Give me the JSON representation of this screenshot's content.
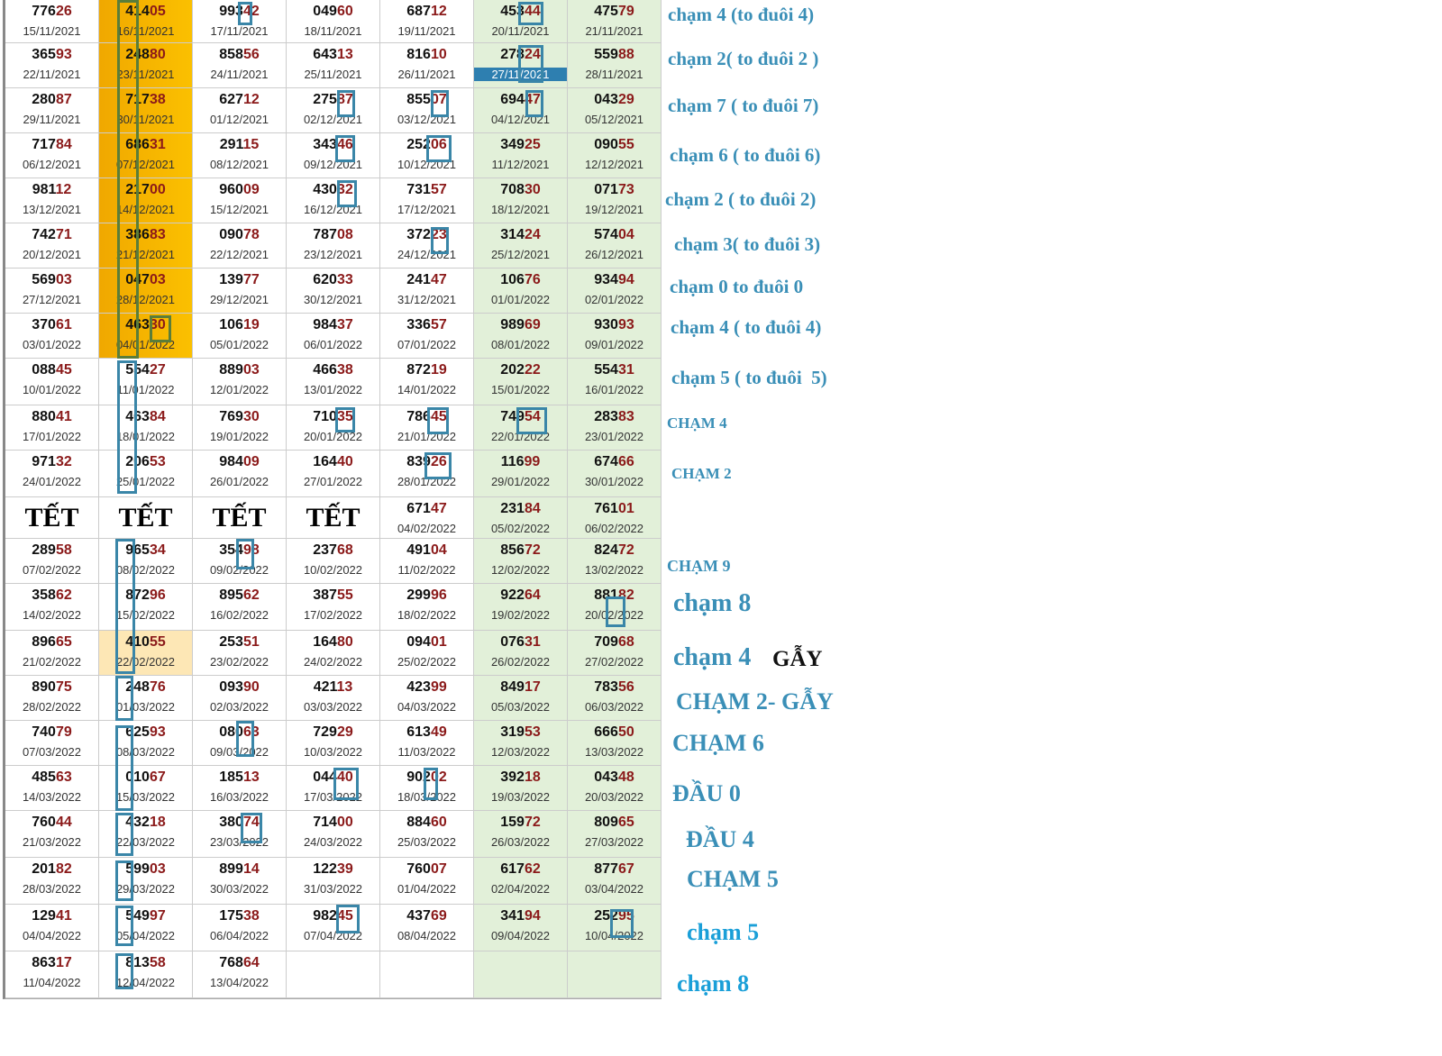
{
  "colors": {
    "tail": "#8b1a1a",
    "annotation": "#3a8fb7",
    "orange": "#f5b400",
    "green": "#e2f0d9",
    "box": "#3a86a8"
  },
  "rows": [
    [
      [
        "77626",
        "15/11/2021"
      ],
      [
        "41405",
        "16/11/2021"
      ],
      [
        "99342",
        "17/11/2021"
      ],
      [
        "04960",
        "18/11/2021"
      ],
      [
        "68712",
        "19/11/2021"
      ],
      [
        "45344",
        "20/11/2021"
      ],
      [
        "47579",
        "21/11/2021"
      ]
    ],
    [
      [
        "36593",
        "22/11/2021"
      ],
      [
        "24880",
        "23/11/2021"
      ],
      [
        "85856",
        "24/11/2021"
      ],
      [
        "64313",
        "25/11/2021"
      ],
      [
        "81610",
        "26/11/2021"
      ],
      [
        "27824",
        "27/11/2021"
      ],
      [
        "55988",
        "28/11/2021"
      ]
    ],
    [
      [
        "28087",
        "29/11/2021"
      ],
      [
        "71738",
        "30/11/2021"
      ],
      [
        "62712",
        "01/12/2021"
      ],
      [
        "27587",
        "02/12/2021"
      ],
      [
        "85507",
        "03/12/2021"
      ],
      [
        "69447",
        "04/12/2021"
      ],
      [
        "04329",
        "05/12/2021"
      ]
    ],
    [
      [
        "71784",
        "06/12/2021"
      ],
      [
        "68631",
        "07/12/2021"
      ],
      [
        "29115",
        "08/12/2021"
      ],
      [
        "34346",
        "09/12/2021"
      ],
      [
        "25206",
        "10/12/2021"
      ],
      [
        "34925",
        "11/12/2021"
      ],
      [
        "09055",
        "12/12/2021"
      ]
    ],
    [
      [
        "98112",
        "13/12/2021"
      ],
      [
        "21700",
        "14/12/2021"
      ],
      [
        "96009",
        "15/12/2021"
      ],
      [
        "43032",
        "16/12/2021"
      ],
      [
        "73157",
        "17/12/2021"
      ],
      [
        "70830",
        "18/12/2021"
      ],
      [
        "07173",
        "19/12/2021"
      ]
    ],
    [
      [
        "74271",
        "20/12/2021"
      ],
      [
        "38683",
        "21/12/2021"
      ],
      [
        "09078",
        "22/12/2021"
      ],
      [
        "78708",
        "23/12/2021"
      ],
      [
        "37223",
        "24/12/2021"
      ],
      [
        "31424",
        "25/12/2021"
      ],
      [
        "57404",
        "26/12/2021"
      ]
    ],
    [
      [
        "56903",
        "27/12/2021"
      ],
      [
        "04703",
        "28/12/2021"
      ],
      [
        "13977",
        "29/12/2021"
      ],
      [
        "62033",
        "30/12/2021"
      ],
      [
        "24147",
        "31/12/2021"
      ],
      [
        "10676",
        "01/01/2022"
      ],
      [
        "93494",
        "02/01/2022"
      ]
    ],
    [
      [
        "37061",
        "03/01/2022"
      ],
      [
        "46330",
        "04/01/2022"
      ],
      [
        "10619",
        "05/01/2022"
      ],
      [
        "98437",
        "06/01/2022"
      ],
      [
        "33657",
        "07/01/2022"
      ],
      [
        "98969",
        "08/01/2022"
      ],
      [
        "93093",
        "09/01/2022"
      ]
    ],
    [
      [
        "08845",
        "10/01/2022"
      ],
      [
        "55427",
        "11/01/2022"
      ],
      [
        "88903",
        "12/01/2022"
      ],
      [
        "46638",
        "13/01/2022"
      ],
      [
        "87219",
        "14/01/2022"
      ],
      [
        "20222",
        "15/01/2022"
      ],
      [
        "55431",
        "16/01/2022"
      ]
    ],
    [
      [
        "88041",
        "17/01/2022"
      ],
      [
        "46384",
        "18/01/2022"
      ],
      [
        "76930",
        "19/01/2022"
      ],
      [
        "71035",
        "20/01/2022"
      ],
      [
        "78645",
        "21/01/2022"
      ],
      [
        "74954",
        "22/01/2022"
      ],
      [
        "28383",
        "23/01/2022"
      ]
    ],
    [
      [
        "97132",
        "24/01/2022"
      ],
      [
        "20653",
        "25/01/2022"
      ],
      [
        "98409",
        "26/01/2022"
      ],
      [
        "16440",
        "27/01/2022"
      ],
      [
        "83926",
        "28/01/2022"
      ],
      [
        "11699",
        "29/01/2022"
      ],
      [
        "67466",
        "30/01/2022"
      ]
    ],
    [
      [
        "TẾT",
        ""
      ],
      [
        "TẾT",
        ""
      ],
      [
        "TẾT",
        ""
      ],
      [
        "TẾT",
        ""
      ],
      [
        "67147",
        "04/02/2022"
      ],
      [
        "23184",
        "05/02/2022"
      ],
      [
        "76101",
        "06/02/2022"
      ]
    ],
    [
      [
        "28958",
        "07/02/2022"
      ],
      [
        "96534",
        "08/02/2022"
      ],
      [
        "35498",
        "09/02/2022"
      ],
      [
        "23768",
        "10/02/2022"
      ],
      [
        "49104",
        "11/02/2022"
      ],
      [
        "85672",
        "12/02/2022"
      ],
      [
        "82472",
        "13/02/2022"
      ]
    ],
    [
      [
        "35862",
        "14/02/2022"
      ],
      [
        "87296",
        "15/02/2022"
      ],
      [
        "89562",
        "16/02/2022"
      ],
      [
        "38755",
        "17/02/2022"
      ],
      [
        "29996",
        "18/02/2022"
      ],
      [
        "92264",
        "19/02/2022"
      ],
      [
        "88182",
        "20/02/2022"
      ]
    ],
    [
      [
        "89665",
        "21/02/2022"
      ],
      [
        "41055",
        "22/02/2022"
      ],
      [
        "25351",
        "23/02/2022"
      ],
      [
        "16480",
        "24/02/2022"
      ],
      [
        "09401",
        "25/02/2022"
      ],
      [
        "07631",
        "26/02/2022"
      ],
      [
        "70968",
        "27/02/2022"
      ]
    ],
    [
      [
        "89075",
        "28/02/2022"
      ],
      [
        "24876",
        "01/03/2022"
      ],
      [
        "09390",
        "02/03/2022"
      ],
      [
        "42113",
        "03/03/2022"
      ],
      [
        "42399",
        "04/03/2022"
      ],
      [
        "84917",
        "05/03/2022"
      ],
      [
        "78356",
        "06/03/2022"
      ]
    ],
    [
      [
        "74079",
        "07/03/2022"
      ],
      [
        "62593",
        "08/03/2022"
      ],
      [
        "08063",
        "09/03/2022"
      ],
      [
        "72929",
        "10/03/2022"
      ],
      [
        "61349",
        "11/03/2022"
      ],
      [
        "31953",
        "12/03/2022"
      ],
      [
        "66650",
        "13/03/2022"
      ]
    ],
    [
      [
        "48563",
        "14/03/2022"
      ],
      [
        "01067",
        "15/03/2022"
      ],
      [
        "18513",
        "16/03/2022"
      ],
      [
        "04440",
        "17/03/2022"
      ],
      [
        "90202",
        "18/03/2022"
      ],
      [
        "39218",
        "19/03/2022"
      ],
      [
        "04348",
        "20/03/2022"
      ]
    ],
    [
      [
        "76044",
        "21/03/2022"
      ],
      [
        "43218",
        "22/03/2022"
      ],
      [
        "38074",
        "23/03/2022"
      ],
      [
        "71400",
        "24/03/2022"
      ],
      [
        "88460",
        "25/03/2022"
      ],
      [
        "15972",
        "26/03/2022"
      ],
      [
        "80965",
        "27/03/2022"
      ]
    ],
    [
      [
        "20182",
        "28/03/2022"
      ],
      [
        "59903",
        "29/03/2022"
      ],
      [
        "89914",
        "30/03/2022"
      ],
      [
        "12239",
        "31/03/2022"
      ],
      [
        "76007",
        "01/04/2022"
      ],
      [
        "61762",
        "02/04/2022"
      ],
      [
        "87767",
        "03/04/2022"
      ]
    ],
    [
      [
        "12941",
        "04/04/2022"
      ],
      [
        "54997",
        "05/04/2022"
      ],
      [
        "17538",
        "06/04/2022"
      ],
      [
        "98245",
        "07/04/2022"
      ],
      [
        "43769",
        "08/04/2022"
      ],
      [
        "34194",
        "09/04/2022"
      ],
      [
        "25295",
        "10/04/2022"
      ]
    ],
    [
      [
        "86317",
        "11/04/2022"
      ],
      [
        "81358",
        "12/04/2022"
      ],
      [
        "76864",
        "13/04/2022"
      ],
      [
        "",
        ""
      ],
      [
        "",
        ""
      ],
      [
        "",
        ""
      ],
      [
        "",
        ""
      ]
    ]
  ],
  "annotations": [
    "chạm 4 (to đuôi 4)",
    "chạm 2( to đuôi 2 )",
    "chạm 7 ( to đuôi 7)",
    "chạm 6 ( to đuôi 6)",
    "chạm 2 ( to đuôi 2)",
    "chạm 3( to đuôi 3)",
    "chạm 0 to đuôi 0",
    "chạm 4 ( to đuôi 4)",
    "chạm 5 ( to đuôi  5)",
    "CHẠM 4",
    "CHẠM 2",
    "CHẠM 9",
    "chạm 8",
    "chạm 4",
    "GẪY",
    "CHẠM 2- GẪY",
    "CHẠM 6",
    "ĐẦU 0",
    "ĐẦU 4",
    "CHẠM 5",
    "chạm 5",
    "chạm 8"
  ]
}
